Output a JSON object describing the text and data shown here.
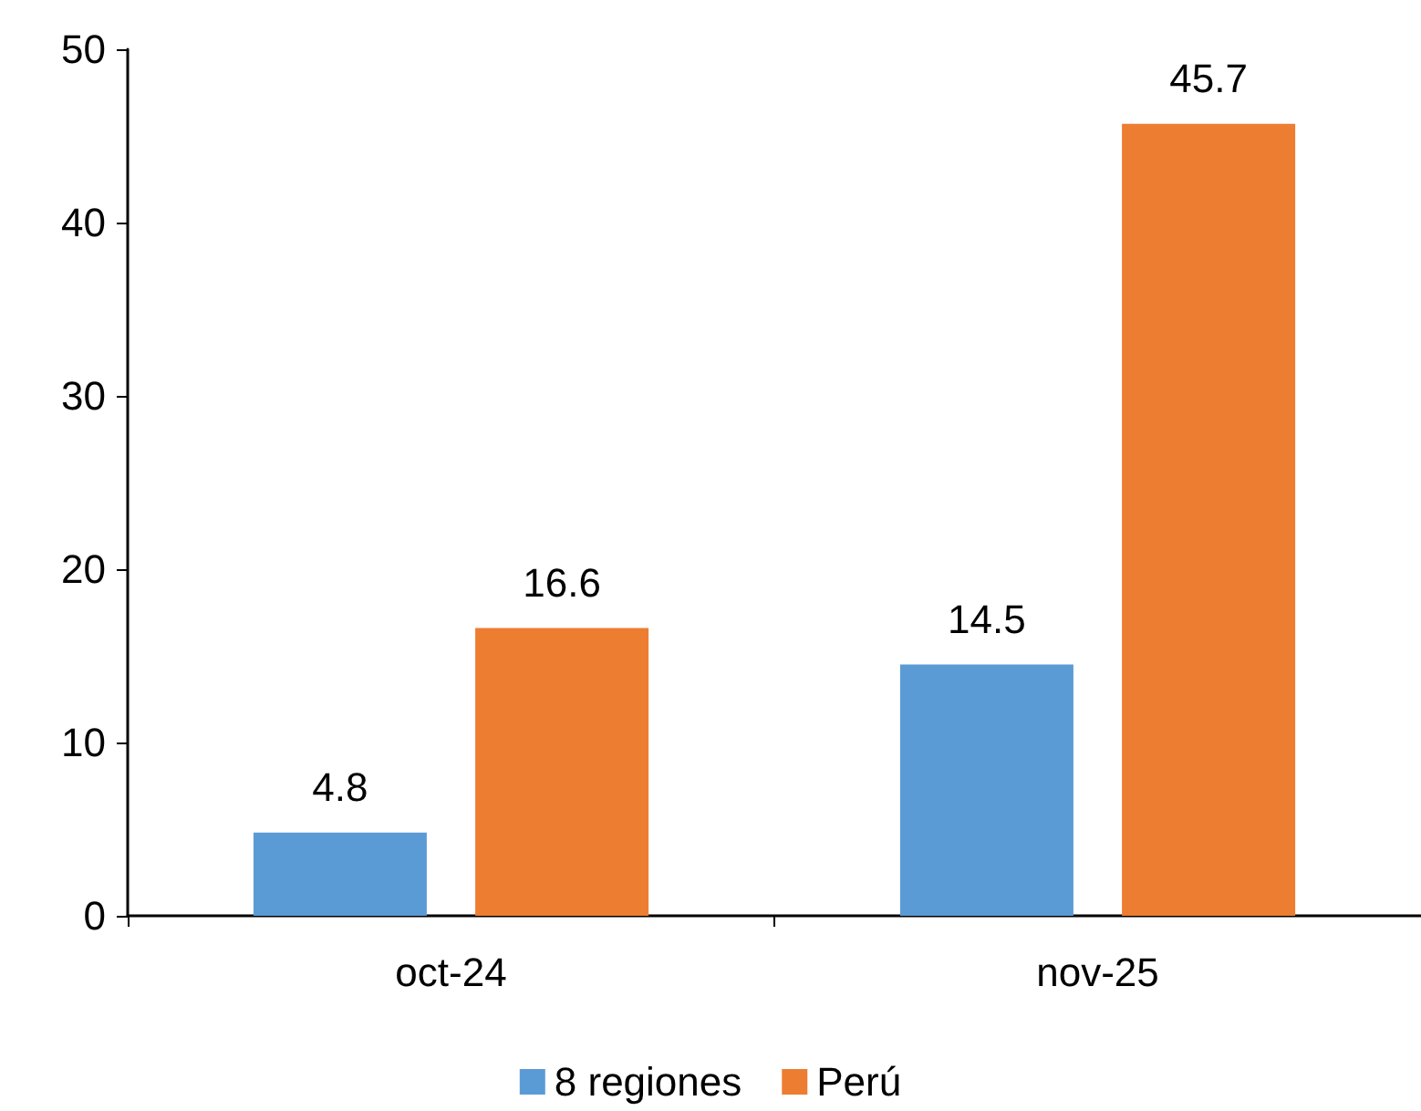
{
  "chart_data": {
    "type": "bar",
    "categories": [
      "oct-24",
      "nov-25"
    ],
    "series": [
      {
        "name": "8 regiones",
        "color": "#5b9bd5",
        "values": [
          4.8,
          14.5
        ]
      },
      {
        "name": "Perú",
        "color": "#ed7d31",
        "values": [
          16.6,
          45.7
        ]
      }
    ],
    "ylim": [
      0,
      50
    ],
    "yticks": [
      0,
      10,
      20,
      30,
      40,
      50
    ],
    "grid": false,
    "legend": "bottom",
    "data_labels": true
  }
}
